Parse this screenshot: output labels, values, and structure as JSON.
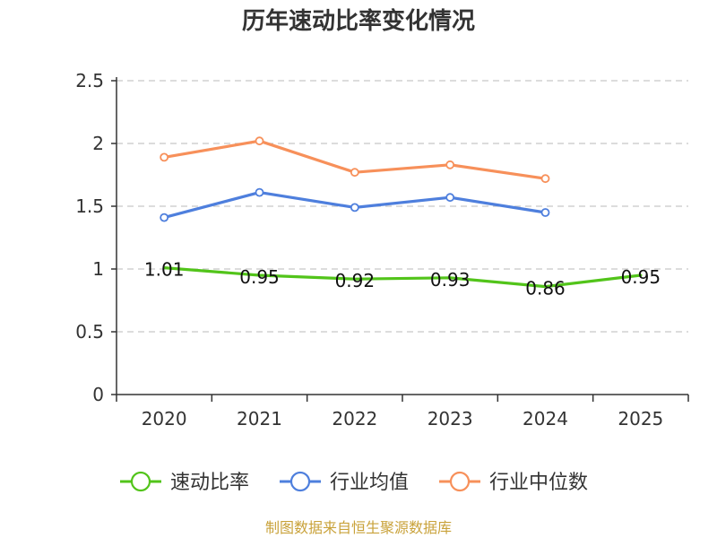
{
  "chart_data": {
    "type": "line",
    "title": "历年速动比率变化情况",
    "categories": [
      "2020",
      "2021",
      "2022",
      "2023",
      "2024",
      "2025"
    ],
    "ylim": [
      0,
      2.5
    ],
    "yticks": [
      "0",
      "0.5",
      "1",
      "1.5",
      "2",
      "2.5"
    ],
    "ytick_values": [
      0,
      0.5,
      1,
      1.5,
      2,
      2.5
    ],
    "grid": true,
    "legend_position": "bottom",
    "series": [
      {
        "name": "速动比率",
        "color": "#52c41a",
        "values": [
          1.01,
          0.95,
          0.92,
          0.93,
          0.86,
          0.95
        ],
        "labels": [
          "1.01",
          "0.95",
          "0.92",
          "0.93",
          "0.86",
          "0.95"
        ],
        "show_markers": false
      },
      {
        "name": "行业均值",
        "color": "#4e7fdd",
        "values": [
          1.41,
          1.61,
          1.49,
          1.57,
          1.45,
          null
        ],
        "show_markers": true
      },
      {
        "name": "行业中位数",
        "color": "#f7905a",
        "values": [
          1.89,
          2.02,
          1.77,
          1.83,
          1.72,
          null
        ],
        "show_markers": true
      }
    ]
  },
  "footer": {
    "source": "制图数据来自恒生聚源数据库"
  }
}
